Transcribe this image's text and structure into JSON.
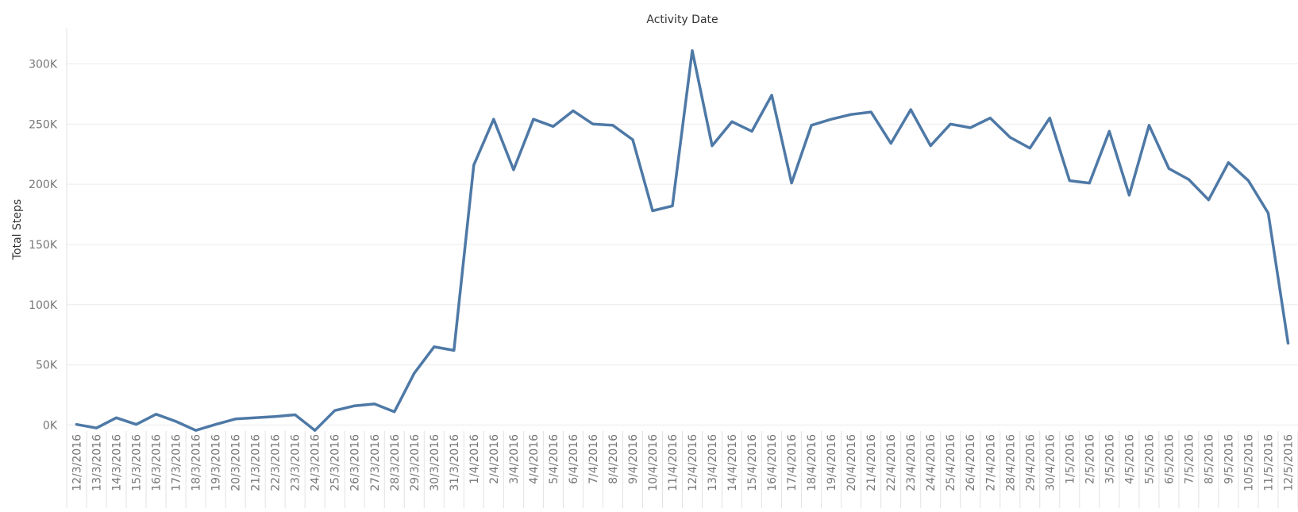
{
  "chart_data": {
    "type": "line",
    "title": "Activity Date",
    "xlabel": "",
    "ylabel": "Total Steps",
    "ylim": [
      -5000,
      330000
    ],
    "yticks": [
      0,
      50000,
      100000,
      150000,
      200000,
      250000,
      300000
    ],
    "ytick_labels": [
      "0K",
      "50K",
      "100K",
      "150K",
      "200K",
      "250K",
      "300K"
    ],
    "grid": true,
    "color": "#4e79a7",
    "categories": [
      "12/3/2016",
      "13/3/2016",
      "14/3/2016",
      "15/3/2016",
      "16/3/2016",
      "17/3/2016",
      "18/3/2016",
      "19/3/2016",
      "20/3/2016",
      "21/3/2016",
      "22/3/2016",
      "23/3/2016",
      "24/3/2016",
      "25/3/2016",
      "26/3/2016",
      "27/3/2016",
      "28/3/2016",
      "29/3/2016",
      "30/3/2016",
      "31/3/2016",
      "1/4/2016",
      "2/4/2016",
      "3/4/2016",
      "4/4/2016",
      "5/4/2016",
      "6/4/2016",
      "7/4/2016",
      "8/4/2016",
      "9/4/2016",
      "10/4/2016",
      "11/4/2016",
      "12/4/2016",
      "13/4/2016",
      "14/4/2016",
      "15/4/2016",
      "16/4/2016",
      "17/4/2016",
      "18/4/2016",
      "19/4/2016",
      "20/4/2016",
      "21/4/2016",
      "22/4/2016",
      "23/4/2016",
      "24/4/2016",
      "25/4/2016",
      "26/4/2016",
      "27/4/2016",
      "28/4/2016",
      "29/4/2016",
      "30/4/2016",
      "1/5/2016",
      "2/5/2016",
      "3/5/2016",
      "4/5/2016",
      "5/5/2016",
      "6/5/2016",
      "7/5/2016",
      "8/5/2016",
      "9/5/2016",
      "10/5/2016",
      "11/5/2016",
      "12/5/2016"
    ],
    "series": [
      {
        "values": [
          500,
          -2500,
          6000,
          500,
          9000,
          3000,
          -4500,
          500,
          5000,
          6000,
          7000,
          8500,
          -4500,
          12000,
          16000,
          17500,
          11000,
          43000,
          65000,
          62000,
          216000,
          254000,
          212000,
          254000,
          248000,
          261000,
          250000,
          249000,
          237000,
          178000,
          182000,
          311000,
          232000,
          252000,
          244000,
          274000,
          201000,
          249000,
          254000,
          258000,
          260000,
          234000,
          262000,
          232000,
          250000,
          247000,
          255000,
          239000,
          230000,
          255000,
          203000,
          201000,
          244000,
          191000,
          249000,
          213000,
          204000,
          187000,
          218000,
          203000,
          176000,
          68000
        ]
      }
    ]
  }
}
